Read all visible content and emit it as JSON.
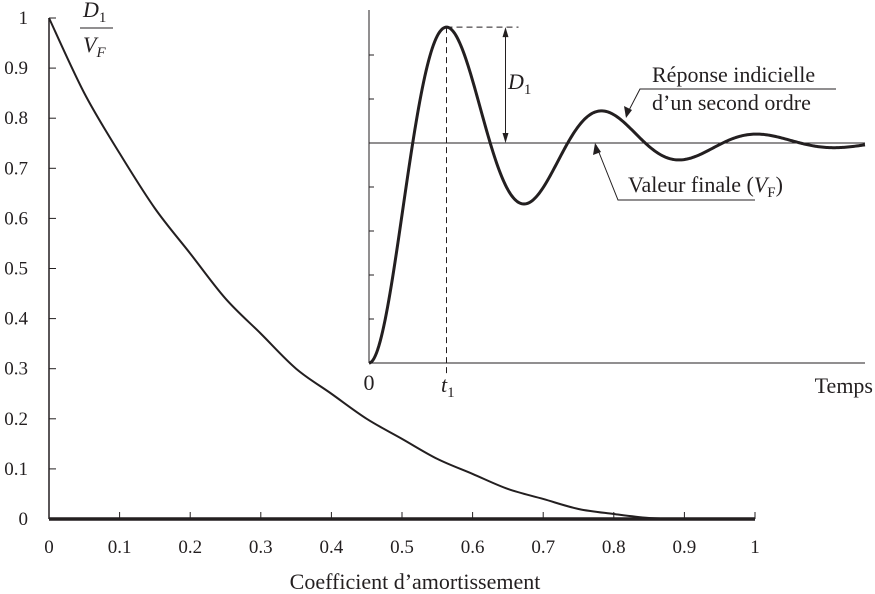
{
  "chart_data": [
    {
      "type": "line",
      "title": "",
      "xlabel": "Coefficient d’amortissement",
      "ylabel_num": "D",
      "ylabel_num_sub": "1",
      "ylabel_den": "V",
      "ylabel_den_sub": "F",
      "xlim": [
        0,
        1
      ],
      "ylim": [
        0,
        1
      ],
      "xticks": [
        "0",
        "0.1",
        "0.2",
        "0.3",
        "0.4",
        "0.5",
        "0.6",
        "0.7",
        "0.8",
        "0.9",
        "1"
      ],
      "yticks": [
        "0",
        "0.1",
        "0.2",
        "0.3",
        "0.4",
        "0.5",
        "0.6",
        "0.7",
        "0.8",
        "0.9",
        "1"
      ],
      "grid": false,
      "series": [
        {
          "x": [
            0,
            0.05,
            0.1,
            0.15,
            0.2,
            0.25,
            0.3,
            0.35,
            0.4,
            0.45,
            0.5,
            0.55,
            0.6,
            0.65,
            0.7,
            0.75,
            0.8,
            0.85,
            0.9
          ],
          "y": [
            1.0,
            0.85,
            0.73,
            0.62,
            0.53,
            0.44,
            0.37,
            0.3,
            0.25,
            0.2,
            0.16,
            0.12,
            0.09,
            0.06,
            0.04,
            0.02,
            0.01,
            0.002,
            0.0
          ]
        }
      ]
    },
    {
      "type": "line",
      "title": "",
      "xlabel": "Temps",
      "x_origin_label": "0",
      "t1_label": "t",
      "t1_sub": "1",
      "d1_label": "D",
      "d1_sub": "1",
      "annotation_response_line1": "Réponse indicielle",
      "annotation_response_line2": "d’un second ordre",
      "annotation_final_text": "Valeur finale (",
      "annotation_final_var": "V",
      "annotation_final_sub": "F",
      "annotation_final_close": ")",
      "grid": false,
      "step_response": {
        "damping_ratio": 0.2,
        "final_value": 1,
        "time_periods": 3.2
      }
    }
  ]
}
